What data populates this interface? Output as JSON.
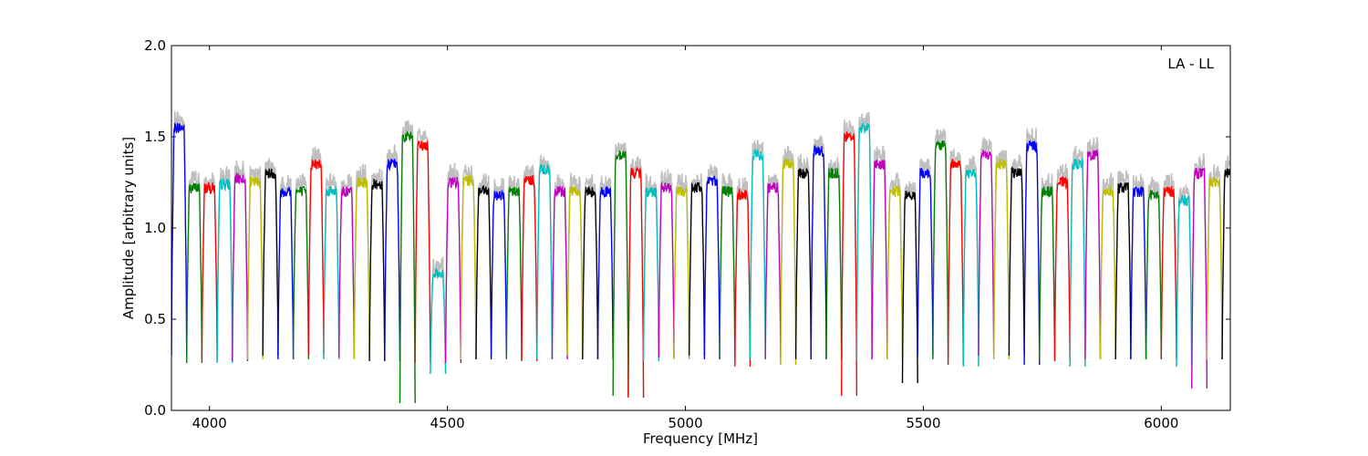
{
  "chart_data": {
    "type": "line",
    "title": "",
    "xlabel": "Frequency [MHz]",
    "ylabel": "Amplitude [arbitrary units]",
    "annotation": "LA - LL",
    "xlim": [
      3920,
      6145
    ],
    "ylim": [
      0.0,
      2.0
    ],
    "x_ticks": [
      4000,
      4500,
      5000,
      5500,
      6000
    ],
    "x_tick_labels": [
      "4000",
      "4500",
      "5000",
      "5500",
      "6000"
    ],
    "y_ticks": [
      0.0,
      0.5,
      1.0,
      1.5,
      2.0
    ],
    "y_tick_labels": [
      "0.0",
      "0.5",
      "1.0",
      "1.5",
      "2.0"
    ],
    "grid": false,
    "legend": "none",
    "channel_width_mhz": 32,
    "color_cycle": [
      "#0000ff",
      "#008000",
      "#ff0000",
      "#00bfbf",
      "#bf00bf",
      "#bfbf00",
      "#000000"
    ],
    "raw_color": "#bfbfbf",
    "spw_start_mhz": [
      3920,
      3952,
      3984,
      4016,
      4048,
      4080,
      4112,
      4144,
      4176,
      4208,
      4240,
      4272,
      4304,
      4336,
      4368,
      4400,
      4432,
      4464,
      4496,
      4528,
      4560,
      4592,
      4624,
      4656,
      4688,
      4720,
      4752,
      4784,
      4816,
      4848,
      4880,
      4912,
      4944,
      4976,
      5008,
      5040,
      5072,
      5104,
      5136,
      5168,
      5200,
      5232,
      5264,
      5296,
      5328,
      5360,
      5392,
      5424,
      5456,
      5488,
      5520,
      5552,
      5584,
      5616,
      5648,
      5680,
      5712,
      5744,
      5776,
      5808,
      5840,
      5872,
      5904,
      5936,
      5968,
      6000,
      6032,
      6064,
      6096,
      6128
    ],
    "spw_level": [
      1.55,
      1.22,
      1.22,
      1.24,
      1.27,
      1.25,
      1.3,
      1.2,
      1.2,
      1.35,
      1.2,
      1.2,
      1.25,
      1.24,
      1.35,
      1.5,
      1.45,
      0.75,
      1.25,
      1.26,
      1.2,
      1.18,
      1.2,
      1.26,
      1.32,
      1.2,
      1.2,
      1.2,
      1.2,
      1.4,
      1.3,
      1.2,
      1.22,
      1.2,
      1.22,
      1.26,
      1.2,
      1.18,
      1.4,
      1.22,
      1.35,
      1.3,
      1.42,
      1.3,
      1.5,
      1.55,
      1.35,
      1.2,
      1.18,
      1.3,
      1.45,
      1.35,
      1.3,
      1.4,
      1.35,
      1.3,
      1.45,
      1.2,
      1.25,
      1.35,
      1.4,
      1.2,
      1.22,
      1.2,
      1.18,
      1.2,
      1.15,
      1.3,
      1.25,
      1.3
    ],
    "spw_min": [
      0.3,
      0.26,
      0.28,
      0.26,
      0.27,
      0.28,
      0.3,
      0.28,
      0.28,
      0.3,
      0.28,
      0.29,
      0.28,
      0.27,
      0.27,
      0.04,
      0.26,
      0.2,
      0.26,
      0.28,
      0.28,
      0.3,
      0.28,
      0.27,
      0.28,
      0.28,
      0.3,
      0.28,
      0.28,
      0.08,
      0.07,
      0.27,
      0.29,
      0.28,
      0.3,
      0.28,
      0.28,
      0.24,
      0.28,
      0.28,
      0.25,
      0.28,
      0.28,
      0.28,
      0.08,
      0.28,
      0.28,
      0.28,
      0.15,
      0.3,
      0.28,
      0.25,
      0.24,
      0.3,
      0.28,
      0.3,
      0.25,
      0.28,
      0.27,
      0.24,
      0.28,
      0.28,
      0.28,
      0.28,
      0.28,
      0.28,
      0.24,
      0.12,
      0.28,
      0.28
    ]
  }
}
